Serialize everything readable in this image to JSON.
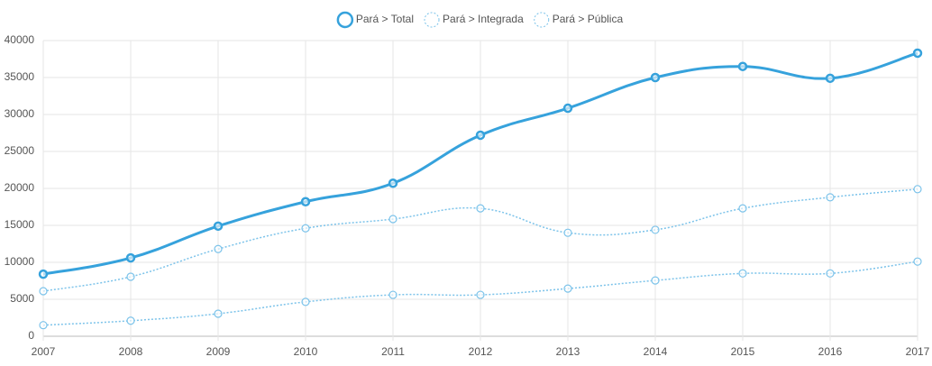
{
  "chart_data": {
    "type": "line",
    "categories": [
      "2007",
      "2008",
      "2009",
      "2010",
      "2011",
      "2012",
      "2013",
      "2014",
      "2015",
      "2016",
      "2017"
    ],
    "series": [
      {
        "name": "Pará > Total",
        "color": "#36a2dc",
        "dashed": false,
        "values": [
          8400,
          10600,
          14900,
          18200,
          20700,
          27200,
          30850,
          35000,
          36500,
          34900,
          38300
        ]
      },
      {
        "name": "Pará > Integrada",
        "color": "#7cc3ea",
        "dashed": true,
        "values": [
          1500,
          2100,
          3050,
          4650,
          5600,
          5600,
          6450,
          7550,
          8500,
          8500,
          10100
        ]
      },
      {
        "name": "Pará > Pública",
        "color": "#7cc3ea",
        "dashed": true,
        "values": [
          6100,
          8050,
          11800,
          14600,
          15850,
          17300,
          14000,
          14400,
          17300,
          18800,
          19900
        ]
      }
    ],
    "ylim": [
      0,
      40000
    ],
    "yticks": [
      0,
      5000,
      10000,
      15000,
      20000,
      25000,
      30000,
      35000,
      40000
    ],
    "grid": true
  }
}
